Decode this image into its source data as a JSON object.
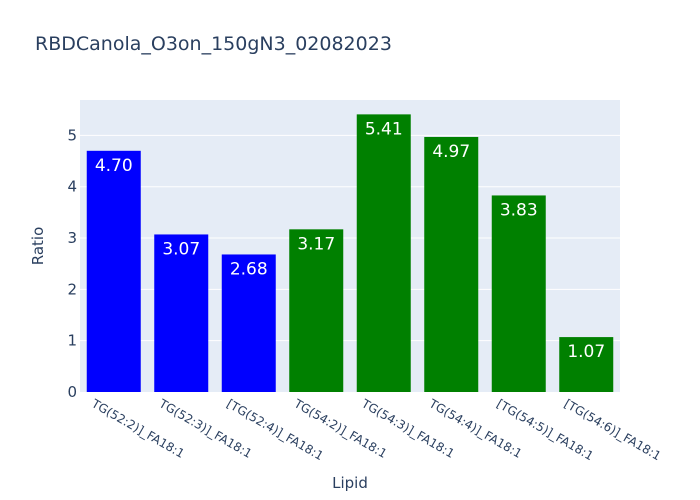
{
  "chart_data": {
    "type": "bar",
    "title": "RBDCanola_O3on_150gN3_02082023",
    "xlabel": "Lipid",
    "ylabel": "Ratio",
    "ylim": [
      0,
      5.69
    ],
    "yticks": [
      "0",
      "1",
      "2",
      "3",
      "4",
      "5"
    ],
    "grid": true,
    "categories": [
      "TG(52:2)]_FA18:1",
      "TG(52:3)]_FA18:1",
      "[TG(52:4)]_FA18:1",
      "TG(54:2)]_FA18:1",
      "TG(54:3)]_FA18:1",
      "TG(54:4)]_FA18:1",
      "[TG(54:5)]_FA18:1",
      "[TG(54:6)]_FA18:1"
    ],
    "values": [
      4.7,
      3.07,
      2.68,
      3.17,
      5.41,
      4.97,
      3.83,
      1.07
    ],
    "value_labels": [
      "4.70",
      "3.07",
      "2.68",
      "3.17",
      "5.41",
      "4.97",
      "3.83",
      "1.07"
    ],
    "bar_colors": [
      "#0000ff",
      "#0000ff",
      "#0000ff",
      "#008000",
      "#008000",
      "#008000",
      "#008000",
      "#008000"
    ],
    "colors": {
      "plot_bg": "#e5ecf6",
      "grid": "#ffffff",
      "text": "#2a3f5f"
    }
  }
}
